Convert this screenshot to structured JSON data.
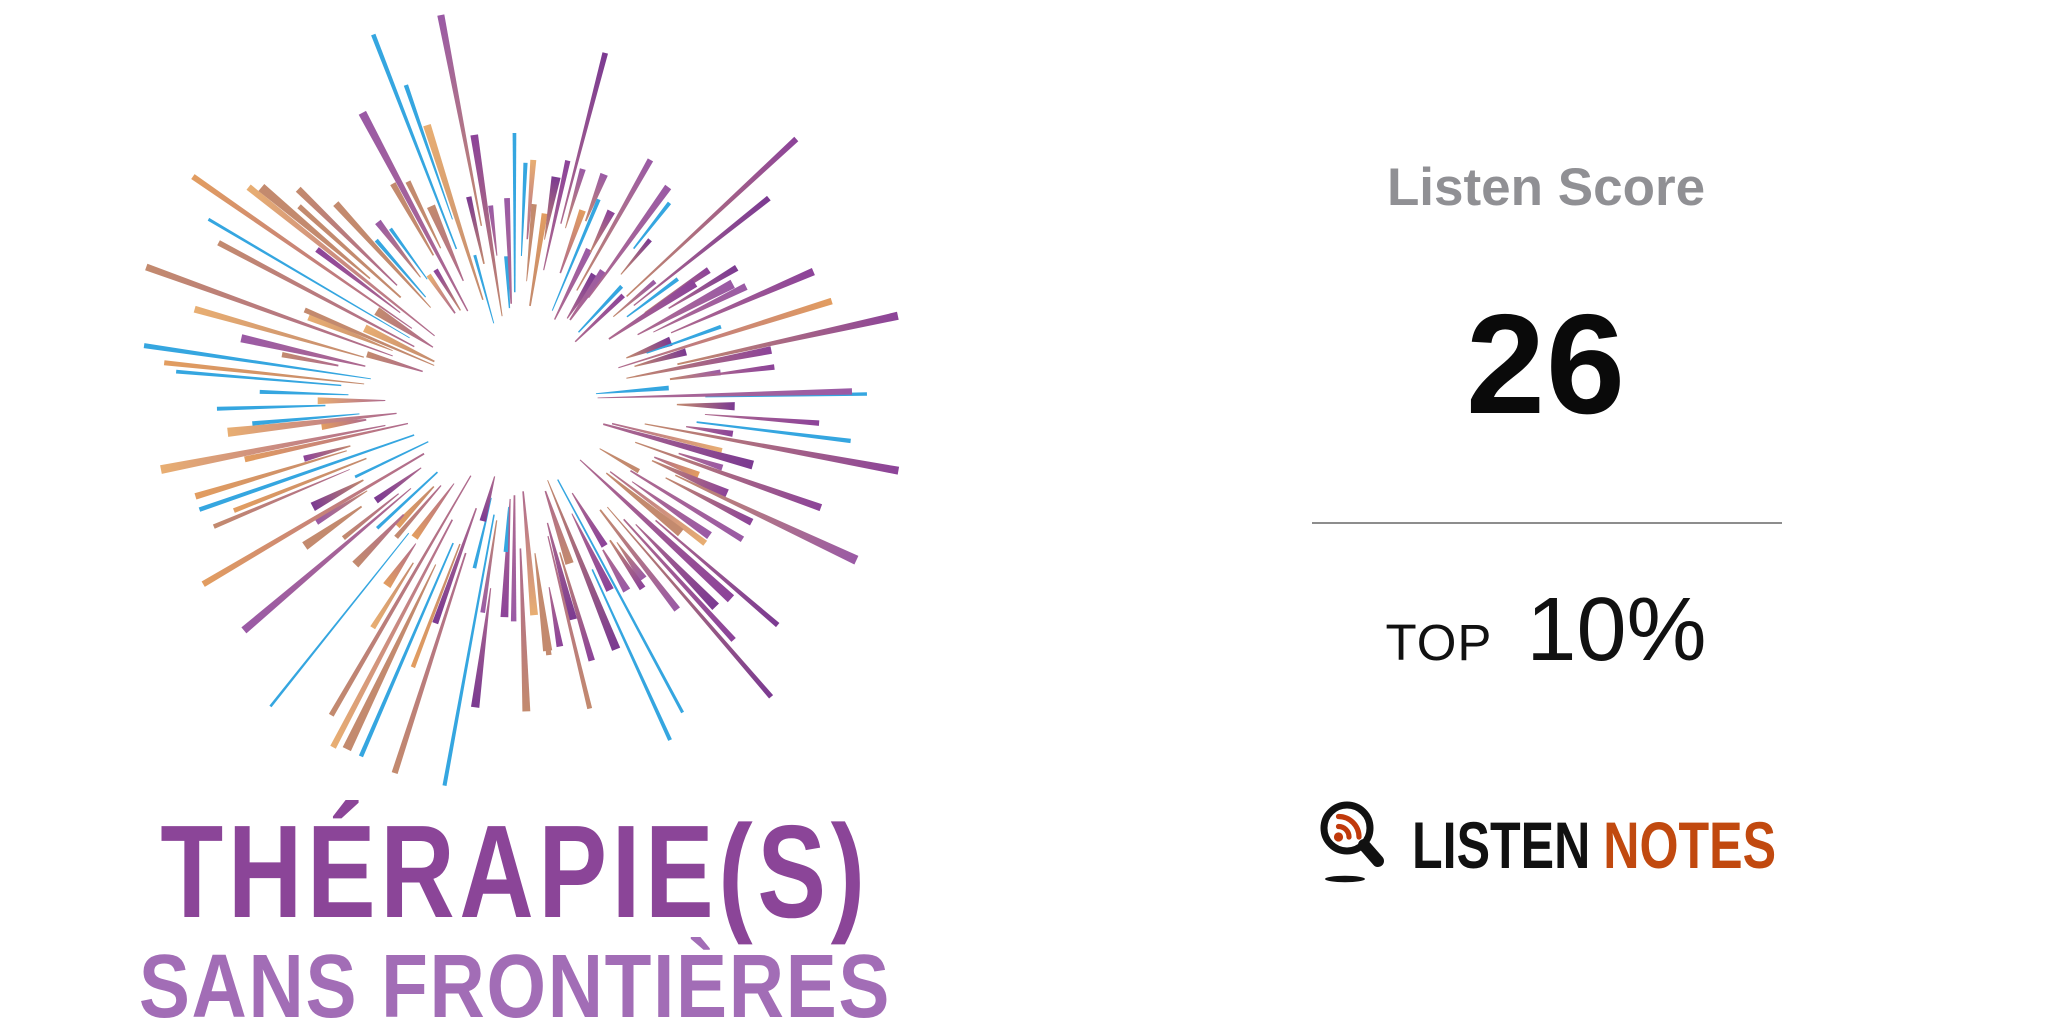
{
  "widget": {
    "background_color": "#ffffff"
  },
  "podcast_logo": {
    "title": "THÉRAPIE(S)",
    "subtitle": "SANS FRONTIÈRES",
    "title_color": "#8b4598",
    "subtitle_color": "#a26db6",
    "starburst_palette": {
      "orange": "#e29d60",
      "light_orange": "#e8ae72",
      "copper": "#c38a6e",
      "mauve": "#ae6a8e",
      "violet": "#9a5aa5",
      "purple": "#8c4399",
      "deep_purple": "#7b3a91",
      "blue": "#35a6e0"
    }
  },
  "listen_score": {
    "label": "Listen Score",
    "label_color": "#909094",
    "score": "26",
    "score_color": "#0a0a0a",
    "divider_color": "#8d8d8d",
    "top_label": "TOP",
    "top_value": "10%",
    "top_text_color": "#111111"
  },
  "listen_notes_brand": {
    "word1": "LISTEN",
    "word2": "NOTES",
    "word1_color": "#111111",
    "word2_color": "#c1490f",
    "icon": "magnifier-rss-icon",
    "icon_color": "#111111",
    "icon_accent_color": "#c0390b"
  }
}
